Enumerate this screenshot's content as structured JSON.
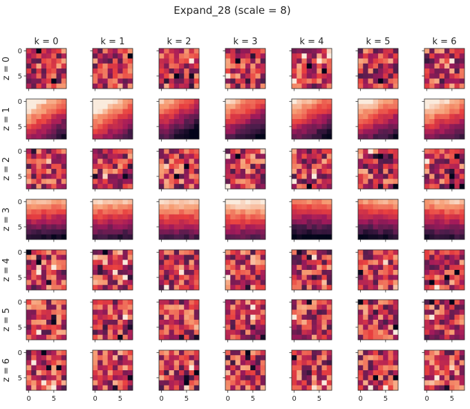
{
  "figure": {
    "title": "Expand_28 (scale = 8)"
  },
  "chart_data": {
    "type": "heatmap",
    "title": "Expand_28 (scale = 8)",
    "grid": "7x7 small multiples",
    "column_labels": [
      "k = 0",
      "k = 1",
      "k = 2",
      "k = 3",
      "k = 4",
      "k = 5",
      "k = 6"
    ],
    "row_labels": [
      "z = 0",
      "z = 1",
      "z = 2",
      "z = 3",
      "z = 4",
      "z = 5",
      "z = 6"
    ],
    "x_ticks": [
      0,
      5
    ],
    "y_ticks": [
      0,
      5
    ],
    "x_tick_labels_shown_on": "bottom row only",
    "y_tick_labels_shown_on": "left column only",
    "cell_size": "8x8",
    "extent": [
      -0.5,
      7.5
    ],
    "colormap": "rocket",
    "colormap_stops": [
      "#03051a",
      "#4c1d4b",
      "#a11a5b",
      "#e83f3f",
      "#f69c73",
      "#faebdd"
    ],
    "value_range": [
      0,
      1
    ],
    "values_note": "per-pixel values are not labeled; each panel's 8x8 value grid is approximated from the color shading"
  }
}
